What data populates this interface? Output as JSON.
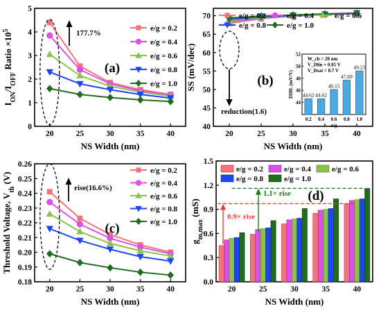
{
  "colors": {
    "e/g = 0.2": "#f2747a",
    "e/g = 0.4": "#dd4fe6",
    "e/g = 0.6": "#8bc34a",
    "e/g = 0.8": "#1e46f0",
    "e/g = 1.0": "#1f6b1f",
    "inset_bar": "#4aa9de",
    "red_anno": "#ff3333",
    "green_anno": "#1d7a1d"
  },
  "chart_data": [
    {
      "type": "line",
      "panel": "(a)",
      "xlabel": "NS Width (nm)",
      "ylabel": "I_ON/I_OFF Ratio ×10^5",
      "x": [
        20,
        25,
        30,
        35,
        40
      ],
      "xlim": [
        17.5,
        42.5
      ],
      "ylim": [
        0,
        5
      ],
      "yticks": [
        0,
        1,
        2,
        3,
        4,
        5
      ],
      "series": [
        {
          "name": "e/g = 0.2",
          "marker": "square",
          "values": [
            4.4,
            2.55,
            1.85,
            1.55,
            1.35
          ]
        },
        {
          "name": "e/g = 0.4",
          "marker": "circle",
          "values": [
            3.85,
            2.4,
            1.8,
            1.5,
            1.33
          ]
        },
        {
          "name": "e/g = 0.6",
          "marker": "triangle-up",
          "values": [
            3.05,
            2.15,
            1.7,
            1.45,
            1.28
          ]
        },
        {
          "name": "e/g = 0.8",
          "marker": "triangle-down",
          "values": [
            2.3,
            1.8,
            1.55,
            1.35,
            1.2
          ]
        },
        {
          "name": "e/g = 1.0",
          "marker": "diamond",
          "values": [
            1.6,
            1.35,
            1.22,
            1.12,
            1.05
          ]
        }
      ],
      "annotations": [
        "177.7%"
      ],
      "legend": "top-right"
    },
    {
      "type": "line",
      "panel": "(b)",
      "xlabel": "NS Width (nm)",
      "ylabel": "SS (mV/dec)",
      "x": [
        20,
        25,
        30,
        35,
        40
      ],
      "xlim": [
        17.5,
        42.5
      ],
      "ylim": [
        40,
        72
      ],
      "yticks": [
        40,
        45,
        50,
        55,
        60,
        65,
        70
      ],
      "series": [
        {
          "name": "e/g = 0.2",
          "marker": "square",
          "values": [
            67.9,
            69.2,
            69.9,
            70.3,
            70.6
          ]
        },
        {
          "name": "e/g = 0.4",
          "marker": "circle",
          "values": [
            68.3,
            69.3,
            69.9,
            70.3,
            70.6
          ]
        },
        {
          "name": "e/g = 0.6",
          "marker": "triangle-up",
          "values": [
            68.6,
            69.5,
            70.0,
            70.4,
            70.7
          ]
        },
        {
          "name": "e/g = 0.8",
          "marker": "triangle-down",
          "values": [
            69.0,
            69.7,
            70.1,
            70.4,
            70.7
          ]
        },
        {
          "name": "e/g = 1.0",
          "marker": "diamond",
          "values": [
            69.4,
            69.9,
            70.2,
            70.5,
            70.7
          ]
        }
      ],
      "annotations": [
        "reduction(1.6)"
      ],
      "legend": "top"
    },
    {
      "type": "bar",
      "panel": "(b) inset",
      "xlabel": "e/g",
      "ylabel": "DIBL (mV/V)",
      "categories": [
        "0.2",
        "0.4",
        "0.6",
        "0.8",
        "1.0"
      ],
      "values": [
        44.62,
        44.62,
        46.15,
        47.69,
        49.23
      ],
      "value_labels": [
        "44.62",
        "44.62",
        "46.15",
        "47.69",
        "49.23"
      ],
      "ylim": [
        42,
        52
      ],
      "yticks": [
        44,
        46,
        48,
        50,
        52
      ],
      "annotations": [
        "W_ch = 20 nm",
        "V_Dlin = 0.05 V",
        "V_Dsat = 0.7 V"
      ]
    },
    {
      "type": "line",
      "panel": "(c)",
      "xlabel": "NS Width (nm)",
      "ylabel": "Threshold Voltage, V_th (V)",
      "x": [
        20,
        25,
        30,
        35,
        40
      ],
      "xlim": [
        17.5,
        42.5
      ],
      "ylim": [
        0.18,
        0.26
      ],
      "yticks": [
        "0.18",
        "0.19",
        "0.20",
        "0.21",
        "0.22",
        "0.23",
        "0.24",
        "0.25",
        "0.26"
      ],
      "series": [
        {
          "name": "e/g = 0.2",
          "marker": "square",
          "values": [
            0.241,
            0.223,
            0.212,
            0.205,
            0.2
          ]
        },
        {
          "name": "e/g = 0.4",
          "marker": "circle",
          "values": [
            0.234,
            0.219,
            0.2095,
            0.2035,
            0.199
          ]
        },
        {
          "name": "e/g = 0.6",
          "marker": "triangle-up",
          "values": [
            0.226,
            0.214,
            0.206,
            0.201,
            0.1975
          ]
        },
        {
          "name": "e/g = 0.8",
          "marker": "triangle-down",
          "values": [
            0.216,
            0.208,
            0.202,
            0.197,
            0.194
          ]
        },
        {
          "name": "e/g = 1.0",
          "marker": "diamond",
          "values": [
            0.199,
            0.193,
            0.1895,
            0.1865,
            0.1845
          ]
        }
      ],
      "annotations": [
        "rise(16.6%)"
      ],
      "legend": "top-right"
    },
    {
      "type": "bar",
      "panel": "(d)",
      "xlabel": "NS Width (nm)",
      "ylabel": "g_m,max (mS)",
      "categories": [
        "20",
        "25",
        "30",
        "35",
        "40"
      ],
      "ylim": [
        0,
        1.5
      ],
      "yticks": [
        "0.0",
        "0.3",
        "0.6",
        "0.9",
        "1.2",
        "1.5"
      ],
      "series": [
        {
          "name": "e/g = 0.2",
          "values": [
            0.45,
            0.59,
            0.72,
            0.85,
            0.97
          ]
        },
        {
          "name": "e/g = 0.4",
          "values": [
            0.52,
            0.65,
            0.77,
            0.89,
            1.01
          ]
        },
        {
          "name": "e/g = 0.6",
          "values": [
            0.54,
            0.66,
            0.78,
            0.9,
            1.02
          ]
        },
        {
          "name": "e/g = 0.8",
          "values": [
            0.55,
            0.67,
            0.79,
            0.91,
            1.03
          ]
        },
        {
          "name": "e/g = 1.0",
          "values": [
            0.61,
            0.76,
            0.91,
            1.03,
            1.16
          ]
        }
      ],
      "annotations": [
        "1.1× rise",
        "0.9× rise"
      ],
      "legend": "top"
    }
  ]
}
